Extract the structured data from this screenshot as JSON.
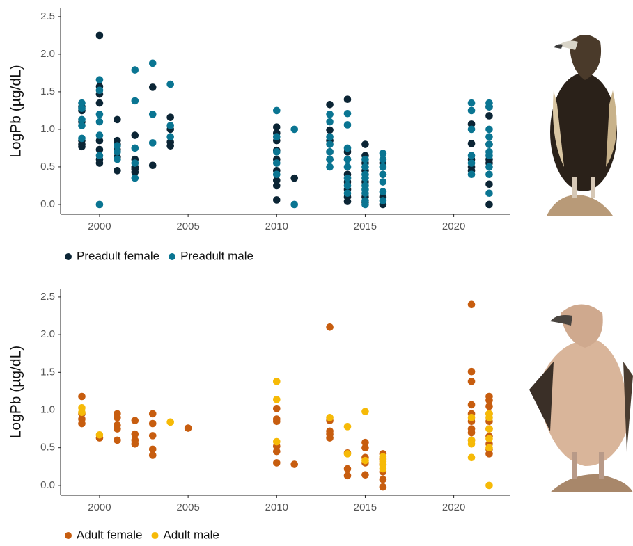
{
  "chart_data": [
    {
      "type": "scatter",
      "ylabel": "LogPb (µg/dL)",
      "xlim": [
        1997.8,
        2023.2
      ],
      "ylim": [
        -0.13,
        2.61
      ],
      "xticks": [
        2000,
        2005,
        2010,
        2015,
        2020
      ],
      "yticks": [
        {
          "value": 0,
          "label": "0.0"
        },
        0.5,
        {
          "value": 1,
          "label": "1.0"
        },
        1.5,
        {
          "value": 2,
          "label": "2.0"
        },
        2.5
      ],
      "series": [
        {
          "name": "Preadult female",
          "color": "#0b2535",
          "x": [
            1999,
            1999,
            1999,
            1999,
            1999,
            1999,
            2000,
            2000,
            2000,
            2000,
            2000,
            2000,
            2000,
            2000,
            2001,
            2001,
            2001,
            2001,
            2001,
            2001,
            2002,
            2002,
            2002,
            2002,
            2002,
            2003,
            2003,
            2004,
            2004,
            2004,
            2004,
            2010,
            2010,
            2010,
            2010,
            2010,
            2010,
            2010,
            2010,
            2010,
            2011,
            2013,
            2013,
            2013,
            2013,
            2013,
            2014,
            2014,
            2014,
            2014,
            2014,
            2014,
            2014,
            2014,
            2015,
            2015,
            2015,
            2015,
            2015,
            2015,
            2015,
            2016,
            2016,
            2016,
            2016,
            2021,
            2021,
            2021,
            2021,
            2021,
            2022,
            2022,
            2022,
            2022,
            2022,
            2022,
            2022
          ],
          "values": [
            1.3,
            1.25,
            1.1,
            0.85,
            0.8,
            0.77,
            2.25,
            1.57,
            1.47,
            1.35,
            0.85,
            0.73,
            0.6,
            0.55,
            1.13,
            0.85,
            0.8,
            0.73,
            0.63,
            0.45,
            0.92,
            0.6,
            0.5,
            0.47,
            0.43,
            1.56,
            0.52,
            1.16,
            1.0,
            0.83,
            0.78,
            1.03,
            0.95,
            0.85,
            0.72,
            0.6,
            0.45,
            0.32,
            0.25,
            0.06,
            0.35,
            1.33,
            0.99,
            0.85,
            0.7,
            0.6,
            1.4,
            0.7,
            0.6,
            0.4,
            0.3,
            0.2,
            0.1,
            0.04,
            0.8,
            0.65,
            0.55,
            0.45,
            0.3,
            0.1,
            0.03,
            0.55,
            0.4,
            0.1,
            0,
            1.07,
            0.81,
            0.6,
            0.5,
            0.45,
            1.3,
            1.18,
            0.8,
            0.6,
            0.55,
            0.27,
            0
          ]
        },
        {
          "name": "Preadult male",
          "color": "#0a7592",
          "x": [
            1999,
            1999,
            1999,
            1999,
            1999,
            2000,
            2000,
            2000,
            2000,
            2000,
            2000,
            2000,
            2001,
            2001,
            2001,
            2002,
            2002,
            2002,
            2002,
            2002,
            2003,
            2003,
            2003,
            2004,
            2004,
            2004,
            2010,
            2010,
            2010,
            2010,
            2010,
            2011,
            2011,
            2013,
            2013,
            2013,
            2013,
            2013,
            2013,
            2013,
            2014,
            2014,
            2014,
            2014,
            2014,
            2014,
            2014,
            2014,
            2015,
            2015,
            2015,
            2015,
            2015,
            2015,
            2015,
            2015,
            2015,
            2016,
            2016,
            2016,
            2016,
            2016,
            2016,
            2016,
            2021,
            2021,
            2021,
            2021,
            2021,
            2021,
            2022,
            2022,
            2022,
            2022,
            2022,
            2022,
            2022,
            2022,
            2022,
            2022
          ],
          "values": [
            1.35,
            1.28,
            1.13,
            1.05,
            0.88,
            1.66,
            1.52,
            1.2,
            1.1,
            0.92,
            0.65,
            0,
            0.78,
            0.7,
            0.6,
            1.79,
            1.38,
            0.75,
            0.55,
            0.35,
            1.88,
            1.2,
            0.82,
            1.6,
            1.05,
            0.9,
            1.25,
            0.9,
            0.7,
            0.55,
            0.4,
            1.0,
            0,
            1.2,
            1.1,
            0.9,
            0.8,
            0.7,
            0.6,
            0.5,
            1.21,
            1.06,
            0.75,
            0.6,
            0.5,
            0.35,
            0.25,
            0.15,
            0.6,
            0.5,
            0.4,
            0.35,
            0.25,
            0.2,
            0.15,
            0.05,
            0,
            0.68,
            0.6,
            0.5,
            0.4,
            0.3,
            0.17,
            0.05,
            1.35,
            1.25,
            1.0,
            0.65,
            0.55,
            0.4,
            1.35,
            1.3,
            1.0,
            0.9,
            0.8,
            0.7,
            0.65,
            0.5,
            0.4,
            0.15
          ]
        }
      ]
    },
    {
      "type": "scatter",
      "ylabel": "LogPb (µg/dL)",
      "xlim": [
        1997.8,
        2023.2
      ],
      "ylim": [
        -0.13,
        2.61
      ],
      "xticks": [
        2000,
        2005,
        2010,
        2015,
        2020
      ],
      "yticks": [
        {
          "value": 0,
          "label": "0.0"
        },
        0.5,
        {
          "value": 1,
          "label": "1.0"
        },
        1.5,
        {
          "value": 2,
          "label": "2.0"
        },
        2.5
      ],
      "series": [
        {
          "name": "Adult female",
          "color": "#c75d0f",
          "x": [
            1999,
            1999,
            1999,
            1999,
            2000,
            2001,
            2001,
            2001,
            2001,
            2001,
            2002,
            2002,
            2002,
            2002,
            2003,
            2003,
            2003,
            2003,
            2003,
            2005,
            2010,
            2010,
            2010,
            2010,
            2010,
            2010,
            2011,
            2013,
            2013,
            2013,
            2013,
            2013,
            2014,
            2014,
            2014,
            2015,
            2015,
            2015,
            2015,
            2015,
            2016,
            2016,
            2016,
            2016,
            2016,
            2016,
            2021,
            2021,
            2021,
            2021,
            2021,
            2021,
            2021,
            2021,
            2021,
            2022,
            2022,
            2022,
            2022,
            2022,
            2022,
            2022,
            2022,
            2022,
            2022
          ],
          "values": [
            1.18,
            0.95,
            0.88,
            0.82,
            0.63,
            0.95,
            0.9,
            0.8,
            0.75,
            0.6,
            0.86,
            0.68,
            0.6,
            0.55,
            0.95,
            0.82,
            0.66,
            0.48,
            0.4,
            0.76,
            1.02,
            0.88,
            0.85,
            0.52,
            0.45,
            0.3,
            0.28,
            2.1,
            0.86,
            0.72,
            0.68,
            0.63,
            0.43,
            0.22,
            0.13,
            0.57,
            0.5,
            0.37,
            0.3,
            0.14,
            0.42,
            0.35,
            0.28,
            0.18,
            0.08,
            -0.02,
            2.4,
            1.51,
            1.38,
            1.07,
            0.95,
            0.85,
            0.75,
            0.7,
            0.6,
            1.18,
            1.13,
            1.05,
            0.95,
            0.85,
            0.75,
            0.65,
            0.55,
            0.48,
            0.42
          ]
        },
        {
          "name": "Adult male",
          "color": "#f6ba07",
          "x": [
            1999,
            1999,
            2000,
            2004,
            2010,
            2010,
            2010,
            2013,
            2014,
            2014,
            2015,
            2015,
            2016,
            2016,
            2016,
            2016,
            2021,
            2021,
            2021,
            2021,
            2022,
            2022,
            2022,
            2022,
            2022,
            2022
          ],
          "values": [
            1.03,
            0.97,
            0.67,
            0.84,
            1.38,
            1.14,
            0.58,
            0.9,
            0.78,
            0.42,
            0.98,
            0.33,
            0.38,
            0.32,
            0.27,
            0.22,
            0.9,
            0.6,
            0.55,
            0.37,
            0.95,
            0.9,
            0.75,
            0.62,
            0.5,
            0
          ]
        }
      ]
    }
  ]
}
